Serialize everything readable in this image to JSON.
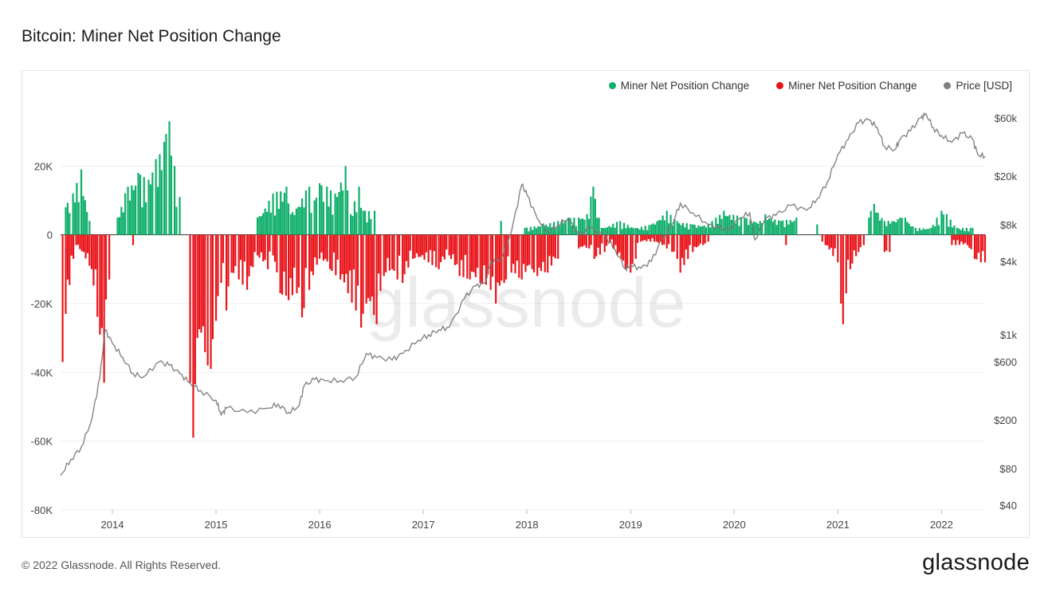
{
  "title": "Bitcoin: Miner Net Position Change",
  "footer": "© 2022 Glassnode. All Rights Reserved.",
  "brand": "glassnode",
  "watermark": "glassnode",
  "legend": [
    {
      "label": "Miner Net Position Change",
      "color": "#0fae6a"
    },
    {
      "label": "Miner Net Position Change",
      "color": "#e8141a"
    },
    {
      "label": "Price [USD]",
      "color": "#808080"
    }
  ],
  "chart_data": {
    "type": "bar",
    "left_axis": {
      "ticks": [
        20000,
        0,
        -20000,
        -40000,
        -60000,
        -80000
      ],
      "tick_labels": [
        "20K",
        "0",
        "-20K",
        "-40K",
        "-60K",
        "-80K"
      ],
      "range": [
        -80000,
        40000
      ]
    },
    "right_axis": {
      "scale": "log",
      "ticks": [
        60000,
        20000,
        8000,
        4000,
        1000,
        600,
        200,
        80,
        40
      ],
      "tick_labels": [
        "$60k",
        "$20k",
        "$8k",
        "$4k",
        "$1k",
        "$600",
        "$200",
        "$80",
        "$40"
      ],
      "range": [
        40,
        60000
      ]
    },
    "x_axis": {
      "tick_labels": [
        "2014",
        "2015",
        "2016",
        "2017",
        "2018",
        "2019",
        "2020",
        "2021",
        "2022"
      ],
      "range": [
        2013.5,
        2022.42
      ]
    },
    "series": [
      {
        "name": "Miner Net Position Change",
        "color": "#0fae6a",
        "sign": "positive",
        "points": [
          [
            2013.55,
            8000
          ],
          [
            2013.62,
            12000
          ],
          [
            2013.7,
            19000
          ],
          [
            2013.78,
            4000
          ],
          [
            2014.05,
            5000
          ],
          [
            2014.15,
            14000
          ],
          [
            2014.25,
            18000
          ],
          [
            2014.35,
            16000
          ],
          [
            2014.42,
            22000
          ],
          [
            2014.5,
            27000
          ],
          [
            2014.55,
            33000
          ],
          [
            2014.6,
            20000
          ],
          [
            2014.65,
            11000
          ],
          [
            2015.4,
            5000
          ],
          [
            2015.55,
            12000
          ],
          [
            2015.68,
            14000
          ],
          [
            2015.72,
            6000
          ],
          [
            2015.9,
            14000
          ],
          [
            2015.95,
            10000
          ],
          [
            2016.0,
            15000
          ],
          [
            2016.07,
            14000
          ],
          [
            2016.15,
            12000
          ],
          [
            2016.25,
            20000
          ],
          [
            2016.3,
            6000
          ],
          [
            2016.38,
            14000
          ],
          [
            2016.42,
            7000
          ],
          [
            2016.53,
            7000
          ],
          [
            2017.75,
            4000
          ],
          [
            2017.98,
            2000
          ],
          [
            2018.15,
            3000
          ],
          [
            2018.3,
            4000
          ],
          [
            2018.4,
            5000
          ],
          [
            2018.5,
            5000
          ],
          [
            2018.58,
            6000
          ],
          [
            2018.64,
            14000
          ],
          [
            2018.72,
            2000
          ],
          [
            2018.9,
            4000
          ],
          [
            2019.05,
            2000
          ],
          [
            2019.2,
            3000
          ],
          [
            2019.35,
            7000
          ],
          [
            2019.45,
            4000
          ],
          [
            2019.6,
            3000
          ],
          [
            2019.75,
            3000
          ],
          [
            2019.9,
            7000
          ],
          [
            2020.1,
            5000
          ],
          [
            2020.25,
            4000
          ],
          [
            2020.3,
            6000
          ],
          [
            2020.45,
            4000
          ],
          [
            2020.6,
            5000
          ],
          [
            2020.8,
            3000
          ],
          [
            2021.3,
            5000
          ],
          [
            2021.35,
            9000
          ],
          [
            2021.45,
            4000
          ],
          [
            2021.6,
            5000
          ],
          [
            2021.65,
            5000
          ],
          [
            2021.75,
            2000
          ],
          [
            2021.9,
            2000
          ],
          [
            2022.0,
            7000
          ],
          [
            2022.05,
            6000
          ],
          [
            2022.15,
            2000
          ],
          [
            2022.3,
            2000
          ]
        ]
      },
      {
        "name": "Miner Net Position Change",
        "color": "#e8141a",
        "sign": "negative",
        "points": [
          [
            2013.52,
            -37000
          ],
          [
            2013.55,
            -23000
          ],
          [
            2013.65,
            -3000
          ],
          [
            2013.8,
            -10000
          ],
          [
            2013.88,
            -29000
          ],
          [
            2013.92,
            -43000
          ],
          [
            2013.97,
            -13000
          ],
          [
            2014.2,
            -3000
          ],
          [
            2014.75,
            -43000
          ],
          [
            2014.78,
            -59000
          ],
          [
            2014.82,
            -30000
          ],
          [
            2014.92,
            -38000
          ],
          [
            2014.95,
            -39000
          ],
          [
            2015.0,
            -25000
          ],
          [
            2015.05,
            -14000
          ],
          [
            2015.1,
            -22000
          ],
          [
            2015.15,
            -11000
          ],
          [
            2015.22,
            -13000
          ],
          [
            2015.3,
            -16000
          ],
          [
            2015.4,
            -6000
          ],
          [
            2015.5,
            -10000
          ],
          [
            2015.55,
            -6000
          ],
          [
            2015.62,
            -17000
          ],
          [
            2015.7,
            -19000
          ],
          [
            2015.78,
            -17000
          ],
          [
            2015.83,
            -24000
          ],
          [
            2015.9,
            -16000
          ],
          [
            2016.0,
            -7000
          ],
          [
            2016.1,
            -10000
          ],
          [
            2016.2,
            -13000
          ],
          [
            2016.35,
            -22000
          ],
          [
            2016.4,
            -27000
          ],
          [
            2016.45,
            -20000
          ],
          [
            2016.55,
            -26000
          ],
          [
            2016.62,
            -12000
          ],
          [
            2016.7,
            -10000
          ],
          [
            2016.75,
            -13000
          ],
          [
            2016.8,
            -14000
          ],
          [
            2016.9,
            -7000
          ],
          [
            2017.05,
            -8000
          ],
          [
            2017.15,
            -10000
          ],
          [
            2017.25,
            -6000
          ],
          [
            2017.35,
            -12000
          ],
          [
            2017.45,
            -13000
          ],
          [
            2017.55,
            -14000
          ],
          [
            2017.65,
            -16000
          ],
          [
            2017.7,
            -20000
          ],
          [
            2017.78,
            -14000
          ],
          [
            2017.85,
            -11000
          ],
          [
            2017.95,
            -13000
          ],
          [
            2018.05,
            -10000
          ],
          [
            2018.1,
            -12000
          ],
          [
            2018.2,
            -11000
          ],
          [
            2018.3,
            -7000
          ],
          [
            2018.5,
            -4000
          ],
          [
            2018.6,
            -4000
          ],
          [
            2018.65,
            -7000
          ],
          [
            2018.75,
            -5000
          ],
          [
            2018.8,
            -2000
          ],
          [
            2018.95,
            -10000
          ],
          [
            2019.0,
            -11000
          ],
          [
            2019.05,
            -7000
          ],
          [
            2019.1,
            -2000
          ],
          [
            2019.25,
            -2000
          ],
          [
            2019.35,
            -4000
          ],
          [
            2019.4,
            -5000
          ],
          [
            2019.45,
            -7000
          ],
          [
            2019.48,
            -11000
          ],
          [
            2019.6,
            -5000
          ],
          [
            2019.7,
            -3000
          ],
          [
            2019.75,
            -2000
          ],
          [
            2020.5,
            -3000
          ],
          [
            2020.85,
            -2000
          ],
          [
            2020.88,
            -3000
          ],
          [
            2021.0,
            -8000
          ],
          [
            2021.03,
            -20000
          ],
          [
            2021.05,
            -26000
          ],
          [
            2021.08,
            -17000
          ],
          [
            2021.12,
            -10000
          ],
          [
            2021.2,
            -5000
          ],
          [
            2021.25,
            -3000
          ],
          [
            2021.45,
            -5000
          ],
          [
            2021.5,
            -5000
          ],
          [
            2022.1,
            -3000
          ],
          [
            2022.25,
            -3000
          ],
          [
            2022.32,
            -7000
          ],
          [
            2022.38,
            -8000
          ],
          [
            2022.42,
            -8000
          ]
        ]
      },
      {
        "name": "Price [USD]",
        "color": "#808080",
        "axis": "right",
        "points": [
          [
            2013.5,
            70
          ],
          [
            2013.6,
            95
          ],
          [
            2013.7,
            120
          ],
          [
            2013.8,
            200
          ],
          [
            2013.88,
            450
          ],
          [
            2013.93,
            1100
          ],
          [
            2014.0,
            850
          ],
          [
            2014.1,
            650
          ],
          [
            2014.2,
            480
          ],
          [
            2014.3,
            450
          ],
          [
            2014.45,
            600
          ],
          [
            2014.55,
            560
          ],
          [
            2014.65,
            480
          ],
          [
            2014.75,
            400
          ],
          [
            2014.85,
            350
          ],
          [
            2015.0,
            290
          ],
          [
            2015.05,
            220
          ],
          [
            2015.1,
            250
          ],
          [
            2015.3,
            230
          ],
          [
            2015.5,
            250
          ],
          [
            2015.6,
            270
          ],
          [
            2015.7,
            230
          ],
          [
            2015.8,
            260
          ],
          [
            2015.85,
            380
          ],
          [
            2015.95,
            430
          ],
          [
            2016.05,
            420
          ],
          [
            2016.2,
            420
          ],
          [
            2016.35,
            450
          ],
          [
            2016.45,
            700
          ],
          [
            2016.55,
            650
          ],
          [
            2016.7,
            620
          ],
          [
            2016.8,
            700
          ],
          [
            2016.95,
            900
          ],
          [
            2017.05,
            1000
          ],
          [
            2017.15,
            1100
          ],
          [
            2017.25,
            1150
          ],
          [
            2017.4,
            2000
          ],
          [
            2017.5,
            2500
          ],
          [
            2017.6,
            2700
          ],
          [
            2017.65,
            4000
          ],
          [
            2017.75,
            4200
          ],
          [
            2017.85,
            7000
          ],
          [
            2017.95,
            17000
          ],
          [
            2018.0,
            14000
          ],
          [
            2018.1,
            9000
          ],
          [
            2018.2,
            7000
          ],
          [
            2018.3,
            8000
          ],
          [
            2018.4,
            9000
          ],
          [
            2018.5,
            6500
          ],
          [
            2018.6,
            7500
          ],
          [
            2018.75,
            6500
          ],
          [
            2018.85,
            5000
          ],
          [
            2018.95,
            3500
          ],
          [
            2019.0,
            3700
          ],
          [
            2019.1,
            3500
          ],
          [
            2019.2,
            4000
          ],
          [
            2019.3,
            6000
          ],
          [
            2019.4,
            8000
          ],
          [
            2019.48,
            12000
          ],
          [
            2019.6,
            10000
          ],
          [
            2019.75,
            8000
          ],
          [
            2019.85,
            7500
          ],
          [
            2019.95,
            7200
          ],
          [
            2020.05,
            9000
          ],
          [
            2020.15,
            10000
          ],
          [
            2020.2,
            6000
          ],
          [
            2020.3,
            9000
          ],
          [
            2020.4,
            9500
          ],
          [
            2020.55,
            11500
          ],
          [
            2020.7,
            10500
          ],
          [
            2020.8,
            13000
          ],
          [
            2020.9,
            18000
          ],
          [
            2021.0,
            30000
          ],
          [
            2021.1,
            40000
          ],
          [
            2021.2,
            55000
          ],
          [
            2021.3,
            58000
          ],
          [
            2021.38,
            50000
          ],
          [
            2021.45,
            35000
          ],
          [
            2021.55,
            33000
          ],
          [
            2021.6,
            40000
          ],
          [
            2021.7,
            47000
          ],
          [
            2021.8,
            60000
          ],
          [
            2021.85,
            65000
          ],
          [
            2021.92,
            50000
          ],
          [
            2022.0,
            43000
          ],
          [
            2022.1,
            38000
          ],
          [
            2022.2,
            45000
          ],
          [
            2022.3,
            40000
          ],
          [
            2022.35,
            30000
          ],
          [
            2022.42,
            29000
          ]
        ]
      }
    ]
  }
}
